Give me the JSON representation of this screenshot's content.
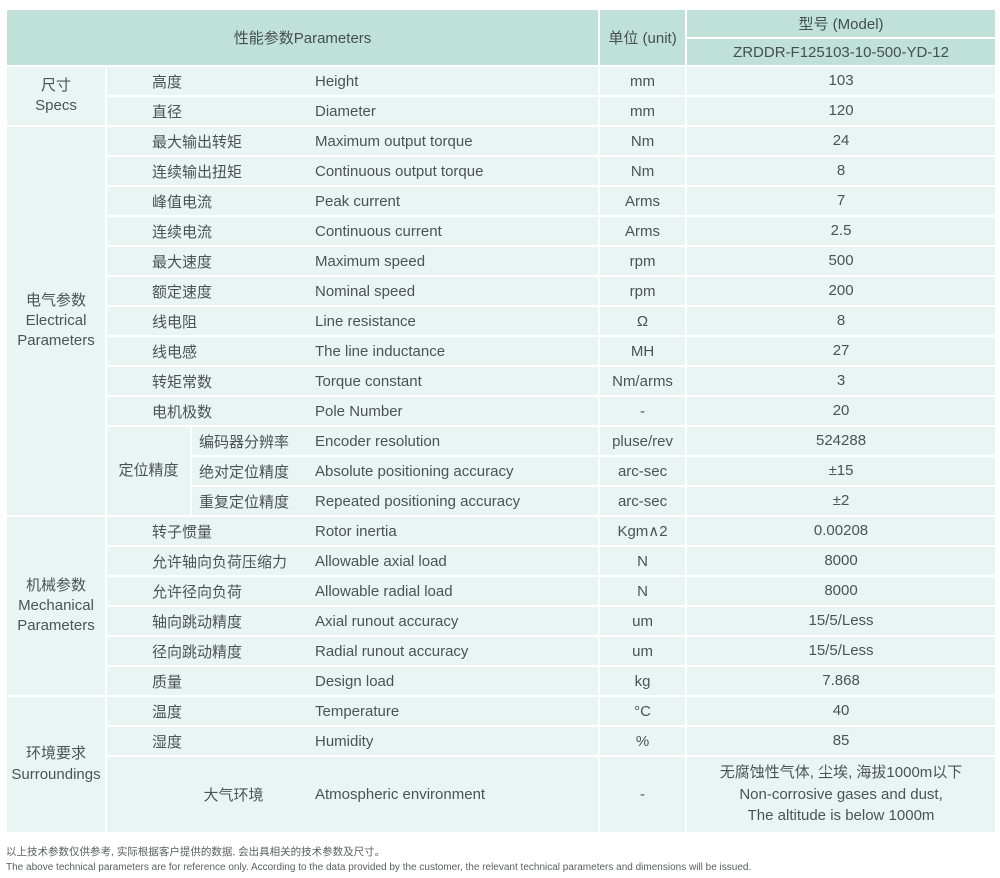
{
  "colors": {
    "header_bg": "#bfe1d8",
    "body_bg": "#e9f5f2",
    "grid_line": "#ffffff",
    "text": "#4c5351"
  },
  "header": {
    "parameters_label": "性能参数Parameters",
    "unit_label": "单位 (unit)",
    "model_label": "型号 (Model)",
    "model_value": "ZRDDR-F125103-10-500-YD-12"
  },
  "sections": [
    {
      "name": "尺寸\nSpecs",
      "rows": [
        {
          "cn": "高度",
          "en": "Height",
          "unit": "mm",
          "value": "103"
        },
        {
          "cn": "直径",
          "en": "Diameter",
          "unit": "mm",
          "value": "120"
        }
      ]
    },
    {
      "name": "电气参数\nElectrical\nParameters",
      "rows": [
        {
          "cn": "最大输出转矩",
          "en": "Maximum output torque",
          "unit": "Nm",
          "value": "24"
        },
        {
          "cn": "连续输出扭矩",
          "en": "Continuous output torque",
          "unit": "Nm",
          "value": "8"
        },
        {
          "cn": "峰值电流",
          "en": "Peak current",
          "unit": "Arms",
          "value": "7"
        },
        {
          "cn": "连续电流",
          "en": "Continuous current",
          "unit": "Arms",
          "value": "2.5"
        },
        {
          "cn": "最大速度",
          "en": "Maximum speed",
          "unit": "rpm",
          "value": "500"
        },
        {
          "cn": "额定速度",
          "en": "Nominal speed",
          "unit": "rpm",
          "value": "200"
        },
        {
          "cn": "线电阻",
          "en": "Line resistance",
          "unit": "Ω",
          "value": "8"
        },
        {
          "cn": "线电感",
          "en": "The line inductance",
          "unit": "MH",
          "value": "27"
        },
        {
          "cn": "转矩常数",
          "en": "Torque constant",
          "unit": "Nm/arms",
          "value": "3"
        },
        {
          "cn": "电机极数",
          "en": "Pole Number",
          "unit": "-",
          "value": "20"
        },
        {
          "group": "定位精度",
          "cn": "编码器分辨率",
          "en": "Encoder resolution",
          "unit": "pluse/rev",
          "value": "524288"
        },
        {
          "in_group": true,
          "cn": "绝对定位精度",
          "en": "Absolute positioning accuracy",
          "unit": "arc-sec",
          "value": "±15"
        },
        {
          "in_group": true,
          "cn": "重复定位精度",
          "en": "Repeated positioning accuracy",
          "unit": "arc-sec",
          "value": "±2"
        }
      ]
    },
    {
      "name": "机械参数\nMechanical\nParameters",
      "rows": [
        {
          "cn": "转子惯量",
          "en": "Rotor inertia",
          "unit": "Kgm∧2",
          "value": "0.00208"
        },
        {
          "cn": "允许轴向负荷压缩力",
          "en": "Allowable axial load",
          "unit": "N",
          "value": "8000"
        },
        {
          "cn": "允许径向负荷",
          "en": "Allowable radial load",
          "unit": "N",
          "value": "8000"
        },
        {
          "cn": "轴向跳动精度",
          "en": "Axial runout accuracy",
          "unit": "um",
          "value": "15/5/Less"
        },
        {
          "cn": "径向跳动精度",
          "en": "Radial runout accuracy",
          "unit": "um",
          "value": "15/5/Less"
        },
        {
          "cn": "质量",
          "en": "Design load",
          "unit": "kg",
          "value": "7.868"
        }
      ]
    },
    {
      "name": "环境要求\nSurroundings",
      "rows": [
        {
          "cn": "温度",
          "en": "Temperature",
          "unit": "°C",
          "value": "40"
        },
        {
          "cn": "湿度",
          "en": "Humidity",
          "unit": "%",
          "value": "85"
        },
        {
          "cn": "大气环境",
          "en": "Atmospheric environment",
          "unit": "-",
          "value": "无腐蚀性气体, 尘埃, 海拔1000m以下\nNon-corrosive gases and dust,\nThe altitude is below 1000m",
          "tall": true,
          "center_cn": true
        }
      ]
    }
  ],
  "footnotes": {
    "cn": "以上技术参数仅供参考, 实际根据客户提供的数据, 会出具相关的技术参数及尺寸。",
    "en": "The above technical parameters are for reference only. According to the data provided by the customer, the relevant technical parameters and dimensions will be issued."
  }
}
